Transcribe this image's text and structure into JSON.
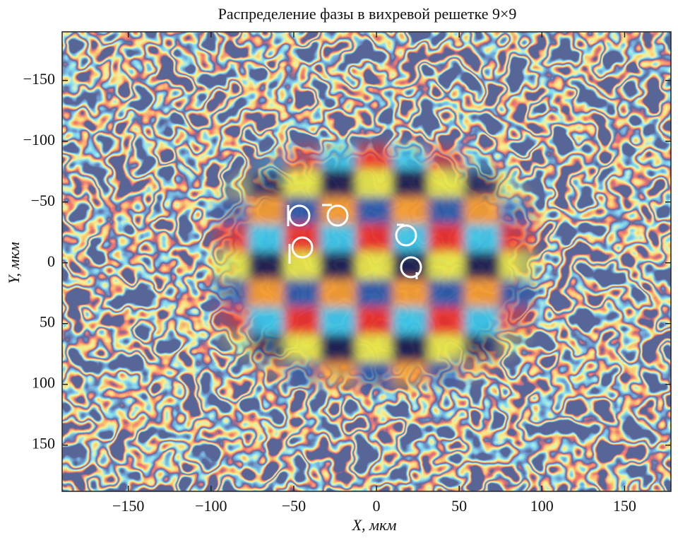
{
  "chart_data": {
    "type": "heatmap",
    "title": "Распределение фазы в вихревой решетке 9×9",
    "x_label": "X, мкм",
    "y_label": "Y, мкм",
    "xlim": [
      -190,
      178
    ],
    "ylim": [
      -190,
      188
    ],
    "y_inverted": true,
    "xticks": [
      {
        "value": -150,
        "label": "−150"
      },
      {
        "value": -100,
        "label": "−100"
      },
      {
        "value": -50,
        "label": "−50"
      },
      0,
      50,
      100,
      150
    ],
    "yticks": [
      {
        "value": -150,
        "label": "−150"
      },
      {
        "value": -100,
        "label": "−100"
      },
      {
        "value": -50,
        "label": "−50"
      },
      0,
      50,
      100,
      150
    ]
  }
}
